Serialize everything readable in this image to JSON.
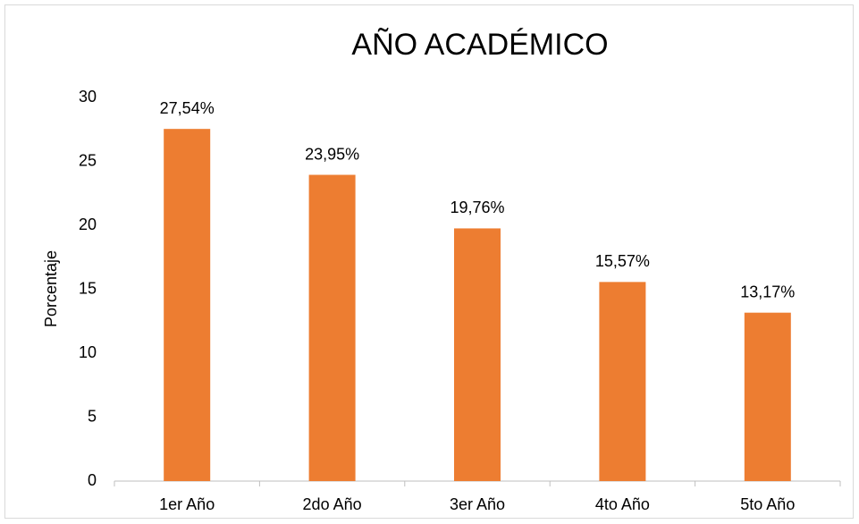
{
  "chart_data": {
    "type": "bar",
    "title": "AÑO ACADÉMICO",
    "y_label": "Porcentaje",
    "categories": [
      "1er Año",
      "2do Año",
      "3er Año",
      "4to Año",
      "5to Año"
    ],
    "values": [
      27.54,
      23.95,
      19.76,
      15.57,
      13.17
    ],
    "value_labels": [
      "27,54%",
      "23,95%",
      "19,76%",
      "15,57%",
      "13,17%"
    ],
    "color": "#ed7d31",
    "ylim": [
      0,
      30
    ],
    "yticks": [
      0,
      5,
      10,
      15,
      20,
      25,
      30
    ],
    "grid": false
  }
}
